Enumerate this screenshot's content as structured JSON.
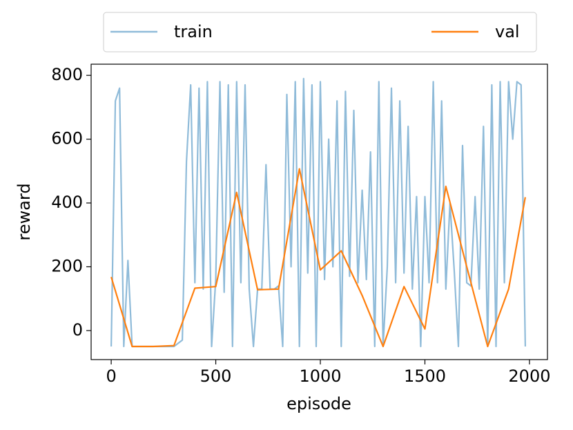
{
  "chart_data": {
    "type": "line",
    "xlabel": "episode",
    "ylabel": "reward",
    "xlim": [
      -96,
      2086
    ],
    "ylim": [
      -91,
      835
    ],
    "xticks": [
      0,
      500,
      1000,
      1500,
      2000
    ],
    "yticks": [
      0,
      200,
      400,
      600,
      800
    ],
    "legend": "upper center outside",
    "series": [
      {
        "name": "train",
        "color": "#8fbbd9",
        "x": [
          0,
          20,
          40,
          60,
          80,
          100,
          120,
          140,
          160,
          180,
          200,
          220,
          240,
          260,
          280,
          300,
          320,
          340,
          360,
          380,
          400,
          420,
          440,
          460,
          480,
          500,
          520,
          540,
          560,
          580,
          600,
          620,
          640,
          660,
          680,
          700,
          720,
          740,
          760,
          780,
          800,
          820,
          840,
          860,
          880,
          900,
          920,
          940,
          960,
          980,
          1000,
          1020,
          1040,
          1060,
          1080,
          1100,
          1120,
          1140,
          1160,
          1180,
          1200,
          1220,
          1240,
          1260,
          1280,
          1300,
          1320,
          1340,
          1360,
          1380,
          1400,
          1420,
          1440,
          1460,
          1480,
          1500,
          1520,
          1540,
          1560,
          1580,
          1600,
          1620,
          1640,
          1660,
          1680,
          1700,
          1720,
          1740,
          1760,
          1780,
          1800,
          1820,
          1840,
          1860,
          1880,
          1900,
          1920,
          1940,
          1960,
          1980
        ],
        "values": [
          -50,
          720,
          760,
          -50,
          220,
          -50,
          -50,
          -50,
          -50,
          -50,
          -50,
          -50,
          -50,
          -50,
          -50,
          -50,
          -40,
          -30,
          530,
          770,
          150,
          760,
          130,
          780,
          -50,
          160,
          780,
          120,
          770,
          -50,
          780,
          150,
          770,
          130,
          -50,
          130,
          130,
          520,
          130,
          130,
          140,
          -50,
          740,
          200,
          780,
          -50,
          790,
          180,
          770,
          -50,
          780,
          160,
          600,
          200,
          720,
          -50,
          750,
          170,
          690,
          150,
          440,
          160,
          560,
          -50,
          780,
          -50,
          200,
          760,
          150,
          720,
          180,
          640,
          130,
          420,
          -50,
          420,
          150,
          780,
          150,
          720,
          130,
          400,
          190,
          -50,
          580,
          150,
          140,
          420,
          130,
          640,
          -50,
          770,
          -50,
          780,
          150,
          780,
          600,
          780,
          770,
          -50
        ]
      },
      {
        "name": "val",
        "color": "#ff7f0e",
        "x": [
          0,
          100,
          200,
          300,
          400,
          500,
          600,
          700,
          800,
          900,
          1000,
          1100,
          1200,
          1300,
          1400,
          1500,
          1600,
          1700,
          1800,
          1900,
          1980
        ],
        "values": [
          168,
          -50,
          -50,
          -47,
          133,
          138,
          433,
          128,
          130,
          507,
          190,
          250,
          110,
          -50,
          138,
          5,
          452,
          200,
          -50,
          130,
          418
        ]
      }
    ]
  }
}
